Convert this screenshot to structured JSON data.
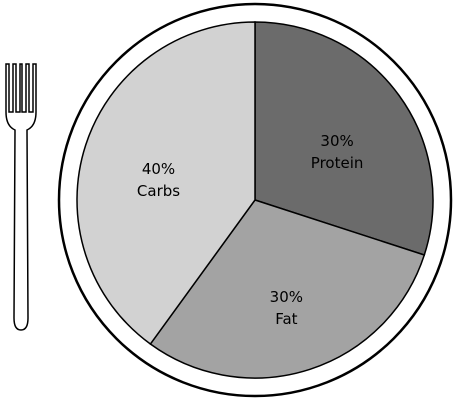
{
  "chart_data": {
    "type": "pie",
    "categories": [
      "Protein",
      "Fat",
      "Carbs"
    ],
    "values": [
      30,
      30,
      40
    ],
    "value_labels": [
      "30%",
      "30%",
      "40%"
    ],
    "colors": [
      "#6b6b6b",
      "#a3a3a3",
      "#d2d2d2"
    ]
  }
}
